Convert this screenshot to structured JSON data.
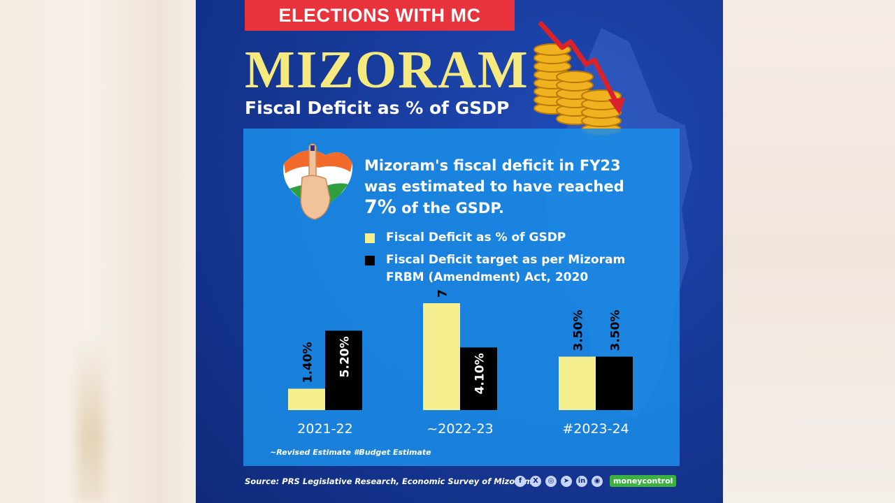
{
  "tag": "ELECTIONS WITH MC",
  "title": "MIZORAM",
  "subtitle": "Fiscal Deficit as % of GSDP",
  "headline": {
    "line1": "Mizoram's fiscal deficit in FY23",
    "line2": "was estimated to have reached",
    "big": "7%",
    "line3_rest": " of the GSDP."
  },
  "legend": [
    {
      "label": "Fiscal Deficit as % of GSDP",
      "color": "#f5ef8f"
    },
    {
      "label": "Fiscal Deficit target as per Mizoram FRBM (Amendment) Act, 2020",
      "color": "#000000"
    }
  ],
  "chart_data": {
    "type": "bar",
    "categories": [
      "2021-22",
      "~2022-23",
      "#2023-24"
    ],
    "series": [
      {
        "name": "Fiscal Deficit as % of GSDP",
        "values": [
          1.4,
          7.0,
          3.5
        ],
        "labels": [
          "1.40%",
          "7.00%",
          "3.50%"
        ],
        "color": "#f5ef8f"
      },
      {
        "name": "Fiscal Deficit target as per Mizoram FRBM (Amendment) Act, 2020",
        "values": [
          5.2,
          4.1,
          3.5
        ],
        "labels": [
          "5.20%",
          "4.10%",
          "3.50%"
        ],
        "color": "#000000"
      }
    ],
    "ylim": [
      0,
      7
    ],
    "note": "~Revised Estimate #Budget Estimate"
  },
  "source": "Source: PRS Legislative Research, Economic Survey of Mizoram",
  "socials": [
    "f",
    "X",
    "◎",
    "➤",
    "in",
    "◉"
  ],
  "brand": "moneycontrol"
}
